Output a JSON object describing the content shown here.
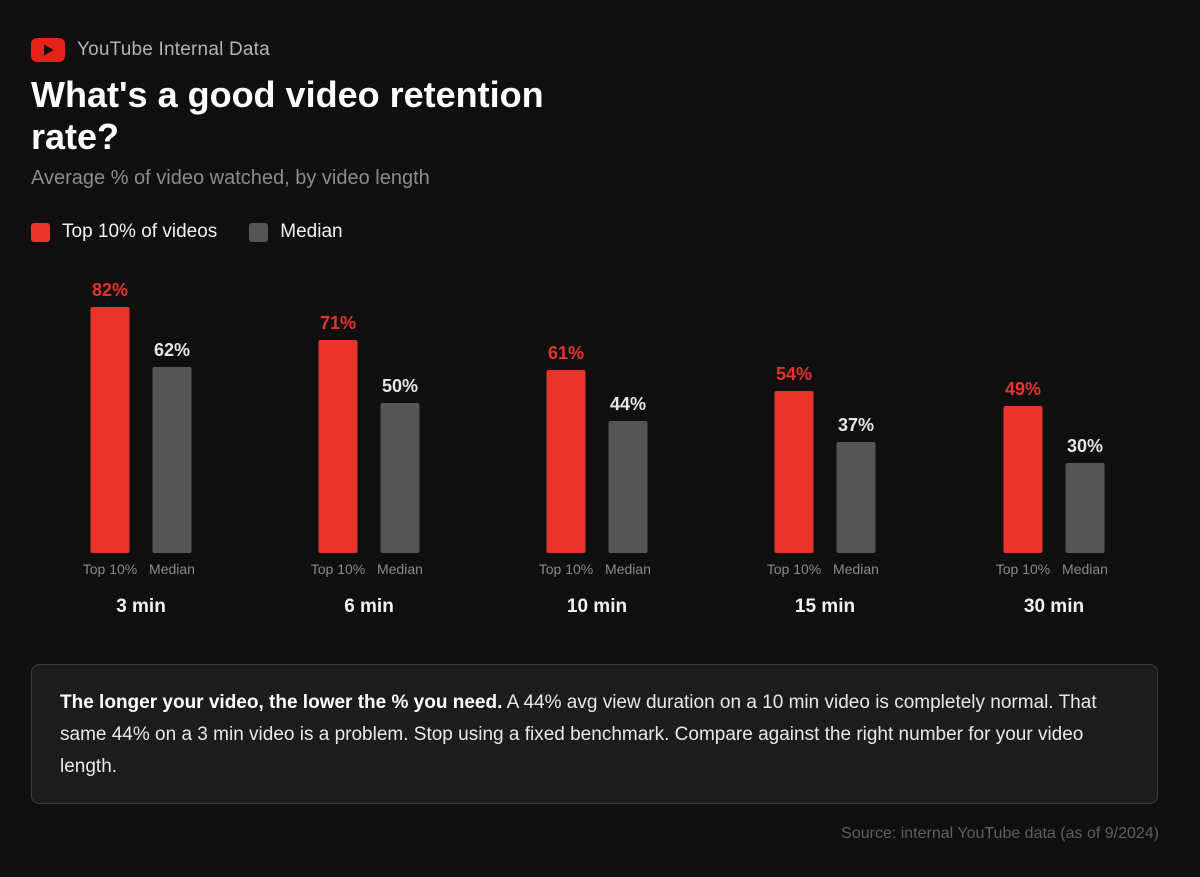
{
  "brand": {
    "label": "YouTube Internal Data",
    "icon": "youtube-logo-icon",
    "color": "#e62117"
  },
  "header": {
    "title": "What's a good video retention rate?",
    "subtitle": "Average % of video watched, by video length"
  },
  "colors": {
    "top10": "#e8342a",
    "median": "#555555",
    "background": "#0f0f0f"
  },
  "chart_data": {
    "type": "bar",
    "title": "What's a good video retention rate?",
    "subtitle": "Average % of video watched, by video length",
    "categories": [
      "3 min",
      "6 min",
      "10 min",
      "15 min",
      "30 min"
    ],
    "bar_labels": [
      "Top 10%",
      "Median"
    ],
    "series": [
      {
        "name": "Top 10% of videos",
        "short": "Top 10%",
        "color": "#e8342a",
        "values": [
          82,
          71,
          61,
          54,
          49
        ]
      },
      {
        "name": "Median",
        "short": "Median",
        "color": "#555555",
        "values": [
          62,
          50,
          44,
          37,
          30
        ]
      }
    ],
    "value_suffix": "%",
    "ylim": [
      0,
      100
    ],
    "grid": false,
    "legend": "top-left"
  },
  "callout": {
    "bold": "The longer your video, the lower the % you need.",
    "text": " A 44% avg view duration on a 10 min video is completely normal. That same 44% on a 3 min video is a problem. Stop using a fixed benchmark. Compare against the right number for your video length."
  },
  "source": "Source: internal YouTube data (as of 9/2024)"
}
